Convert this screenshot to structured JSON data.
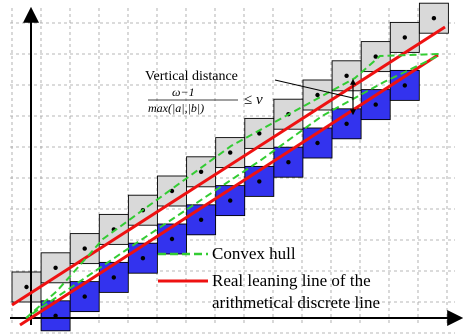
{
  "annotation": {
    "title": "Vertical distance",
    "numerator": "ω−1",
    "denominator": "max(|a|,|b|)",
    "relation": "≤ ν"
  },
  "legend": {
    "convex_hull": "Convex hull",
    "leaning_line_1": "Real leaning line of the",
    "leaning_line_2": "arithmetical discrete line"
  },
  "colors": {
    "gray_cell": "#d9d9d9",
    "blue_cell": "#3333ee",
    "convex_hull": "#33cc33",
    "leaning_line": "#ee1111",
    "grid": "#a0a0a0"
  },
  "cells": {
    "gray": [
      [
        0,
        0
      ],
      [
        1,
        1
      ],
      [
        2,
        2
      ],
      [
        3,
        3
      ],
      [
        4,
        4
      ],
      [
        5,
        5
      ],
      [
        6,
        6
      ],
      [
        7,
        7
      ],
      [
        8,
        8
      ],
      [
        9,
        9
      ],
      [
        10,
        10
      ],
      [
        11,
        11
      ],
      [
        12,
        12
      ],
      [
        13,
        13
      ],
      [
        14,
        14
      ]
    ],
    "blue": [
      [
        1,
        0
      ],
      [
        2,
        1
      ],
      [
        3,
        2
      ],
      [
        4,
        3
      ],
      [
        5,
        4
      ],
      [
        6,
        5
      ],
      [
        7,
        6
      ],
      [
        8,
        7
      ],
      [
        9,
        8
      ],
      [
        10,
        9
      ],
      [
        11,
        10
      ],
      [
        12,
        11
      ],
      [
        13,
        12
      ]
    ]
  }
}
